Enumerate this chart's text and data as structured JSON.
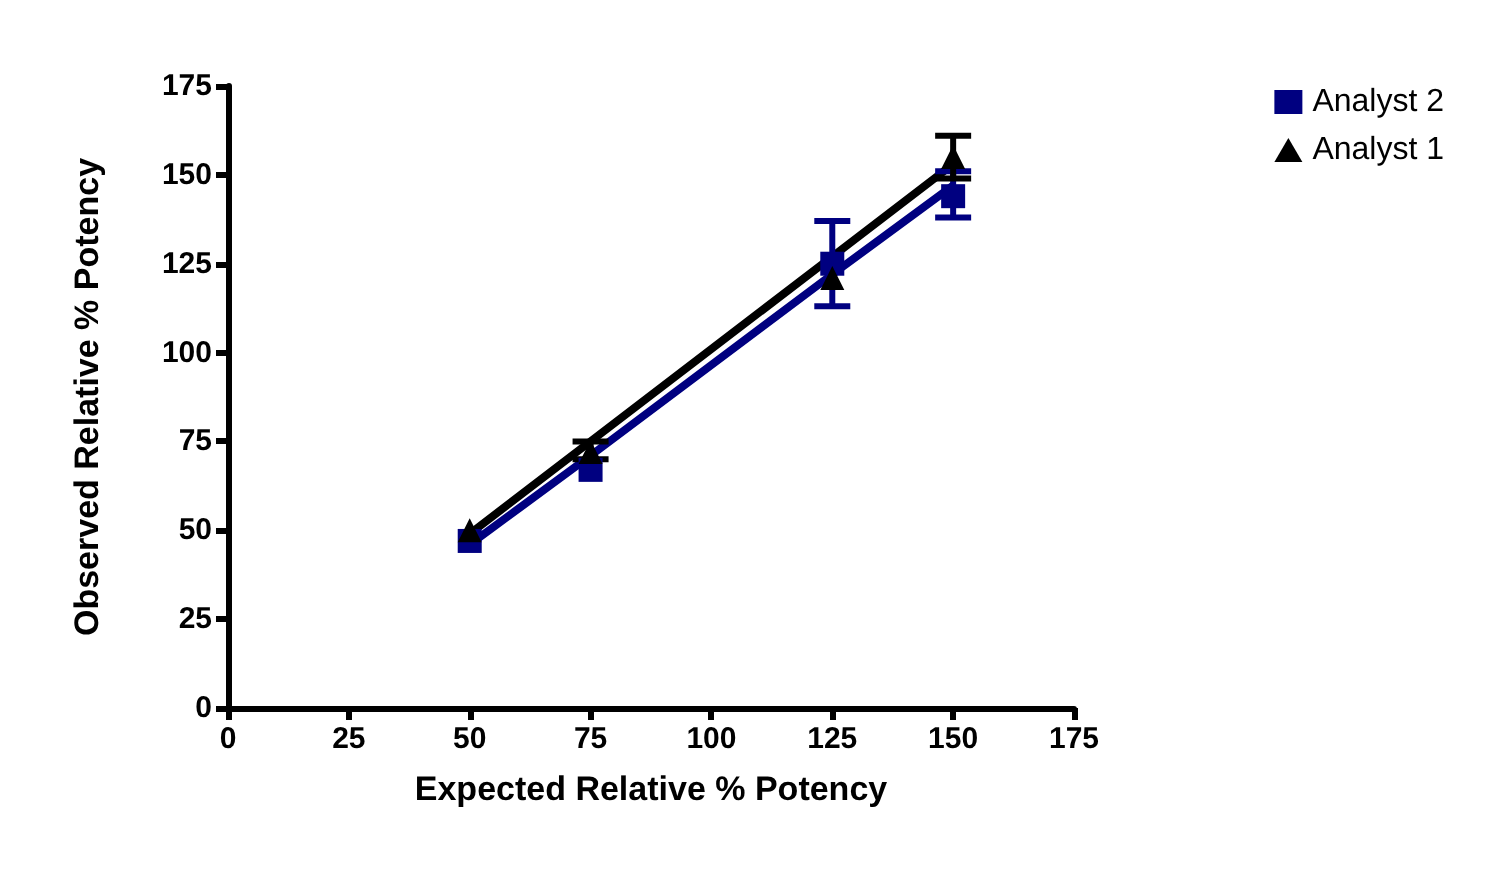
{
  "chart_data": {
    "type": "scatter",
    "xlabel": "Expected Relative % Potency",
    "ylabel": "Observed Relative % Potency",
    "x": [
      50,
      75,
      125,
      150
    ],
    "xlim": [
      0,
      175
    ],
    "xticks": [
      0,
      25,
      50,
      75,
      100,
      125,
      150,
      175
    ],
    "ylim": [
      0,
      175
    ],
    "yticks": [
      0,
      25,
      50,
      75,
      100,
      125,
      150,
      175
    ],
    "grid": false,
    "legend": "top right",
    "series": [
      {
        "name": "Analyst 2",
        "color": "#000080",
        "marker": "square",
        "values": [
          47,
          67,
          125,
          144
        ],
        "errors": [
          null,
          null,
          [
            113,
            137
          ],
          [
            138,
            151
          ]
        ]
      },
      {
        "name": "Analyst 1",
        "color": "#000000",
        "marker": "triangle",
        "values": [
          50,
          72,
          121,
          155
        ],
        "errors": [
          null,
          [
            70,
            75
          ],
          null,
          [
            149,
            161
          ]
        ]
      },
      {
        "type": "line",
        "color": "#000080",
        "values": [
          46,
          71,
          122,
          147
        ]
      },
      {
        "type": "line",
        "color": "#000000",
        "values": [
          49,
          75,
          127,
          153
        ]
      }
    ]
  }
}
